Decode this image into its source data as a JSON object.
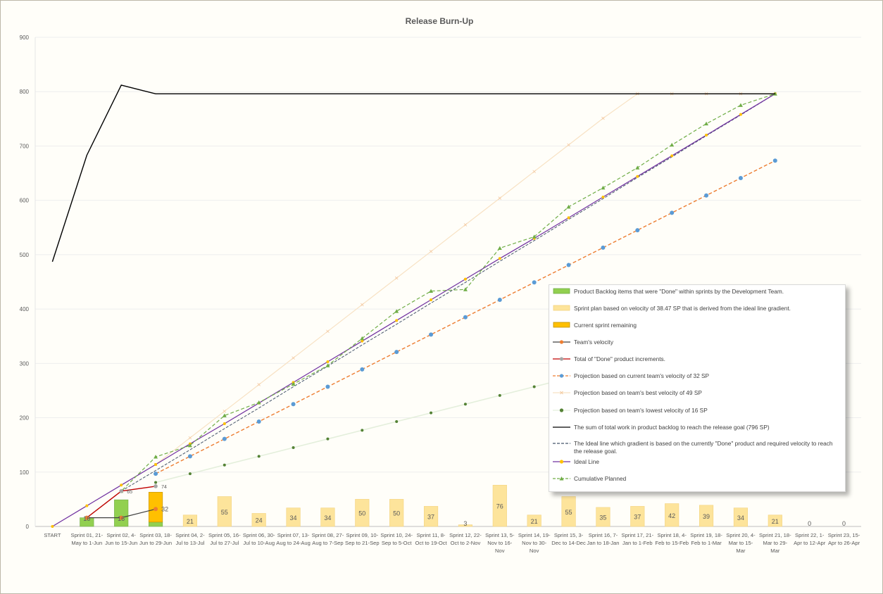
{
  "chart_data": {
    "type": "bar",
    "title": "Release Burn-Up",
    "ylim": [
      0,
      900
    ],
    "yticks": [
      0,
      100,
      200,
      300,
      400,
      500,
      600,
      700,
      800,
      900
    ],
    "categories": [
      "START",
      "Sprint 01, 21-May to 1-Jun",
      "Sprint 02, 4-Jun to 15-Jun",
      "Sprint 03, 18-Jun to 29-Jun",
      "Sprint 04, 2-Jul to 13-Jul",
      "Sprint 05, 16-Jul to 27-Jul",
      "Sprint 06, 30-Jul to 10-Aug",
      "Sprint 07, 13-Aug to 24-Aug",
      "Sprint 08, 27-Aug to 7-Sep",
      "Sprint 09, 10-Sep to 21-Sep",
      "Sprint 10, 24-Sep to 5-Oct",
      "Sprint 11, 8-Oct to 19-Oct",
      "Sprint 12, 22-Oct to 2-Nov",
      "Sprint 13, 5-Nov to 16-Nov",
      "Sprint 14, 19-Nov to 30-Nov",
      "Sprint 15, 3-Dec to 14-Dec",
      "Sprint 16, 7-Jan to 18-Jan",
      "Sprint 17, 21-Jan to 1-Feb",
      "Sprint 18, 4-Feb to 15-Feb",
      "Sprint 19, 18-Feb to 1-Mar",
      "Sprint 20, 4-Mar to 15-Mar",
      "Sprint 21, 18-Mar to 29-Mar",
      "Sprint 22, 1-Apr to 12-Apr",
      "Sprint 23, 15-Apr to 26-Apr"
    ],
    "tick_label_lines": [
      [
        "START"
      ],
      [
        "Sprint 01, 21-",
        "May to 1-Jun"
      ],
      [
        "Sprint 02, 4-",
        "Jun to 15-Jun"
      ],
      [
        "Sprint 03, 18-",
        "Jun to 29-Jun"
      ],
      [
        "Sprint 04, 2-",
        "Jul to 13-Jul"
      ],
      [
        "Sprint 05, 16-",
        "Jul to 27-Jul"
      ],
      [
        "Sprint 06, 30-",
        "Jul to 10-Aug"
      ],
      [
        "Sprint 07, 13-",
        "Aug to 24-Aug"
      ],
      [
        "Sprint 08, 27-",
        "Aug to 7-Sep"
      ],
      [
        "Sprint 09, 10-",
        "Sep to 21-Sep"
      ],
      [
        "Sprint 10, 24-",
        "Sep to 5-Oct"
      ],
      [
        "Sprint 11, 8-",
        "Oct to 19-Oct"
      ],
      [
        "Sprint 12, 22-",
        "Oct to 2-Nov"
      ],
      [
        "Sprint 13, 5-",
        "Nov to 16-",
        "Nov"
      ],
      [
        "Sprint 14, 19-",
        "Nov to 30-",
        "Nov"
      ],
      [
        "Sprint 15, 3-",
        "Dec to 14-Dec"
      ],
      [
        "Sprint 16, 7-",
        "Jan to 18-Jan"
      ],
      [
        "Sprint 17, 21-",
        "Jan to 1-Feb"
      ],
      [
        "Sprint 18, 4-",
        "Feb to 15-Feb"
      ],
      [
        "Sprint 19, 18-",
        "Feb to 1-Mar"
      ],
      [
        "Sprint 20, 4-",
        "Mar to 15-",
        "Mar"
      ],
      [
        "Sprint 21, 18-",
        "Mar to 29-",
        "Mar"
      ],
      [
        "Sprint 22, 1-",
        "Apr to 12-Apr"
      ],
      [
        "Sprint 23, 15-",
        "Apr to 26-Apr"
      ]
    ],
    "series": [
      {
        "name": "Product Backlog items that were \"Done\" within sprints by the Development Team.",
        "kind": "bar",
        "color": "#92d050",
        "values": [
          null,
          16,
          49,
          8,
          null,
          null,
          null,
          null,
          null,
          null,
          null,
          null,
          null,
          null,
          null,
          null,
          null,
          null,
          null,
          null,
          null,
          null,
          null,
          null
        ]
      },
      {
        "name": "Sprint plan based on velocity of 38.47 SP that is derived from the ideal line gradient.",
        "kind": "bar",
        "color": "#fde49b",
        "values": [
          null,
          null,
          null,
          null,
          21,
          55,
          24,
          34,
          34,
          50,
          50,
          37,
          3,
          76,
          21,
          55,
          35,
          37,
          42,
          39,
          34,
          21,
          0,
          0
        ],
        "labels": [
          null,
          "16",
          "16",
          null,
          "21",
          "55",
          "24",
          "34",
          "34",
          "50",
          "50",
          "37",
          "3",
          "76",
          "21",
          "55",
          "35",
          "37",
          "42",
          "39",
          "34",
          "21",
          "0",
          "0"
        ]
      },
      {
        "name": "Current sprint remaining",
        "kind": "bar",
        "color": "#ffc000",
        "values": [
          null,
          null,
          null,
          55,
          null,
          null,
          null,
          null,
          null,
          null,
          null,
          null,
          null,
          null,
          null,
          null,
          null,
          null,
          null,
          null,
          null,
          null,
          null,
          null
        ]
      },
      {
        "name": "Team's velocity",
        "kind": "line",
        "color": "#ed7d31",
        "values": [
          null,
          16,
          16,
          32,
          null,
          null,
          null,
          null,
          null,
          null,
          null,
          null,
          null,
          null,
          null,
          null,
          null,
          null,
          null,
          null,
          null,
          null,
          null,
          null
        ],
        "point_label": {
          "index": 3,
          "text": "32"
        }
      },
      {
        "name": "Total of \"Done\" product increments.",
        "kind": "line",
        "color": "#c00000",
        "values": [
          null,
          16,
          65,
          74,
          null,
          null,
          null,
          null,
          null,
          null,
          null,
          null,
          null,
          null,
          null,
          null,
          null,
          null,
          null,
          null,
          null,
          null,
          null,
          null
        ],
        "point_labels": [
          {
            "index": 2,
            "text": "65"
          },
          {
            "index": 3,
            "text": "74"
          }
        ]
      },
      {
        "name": "Projection based on current team's velocity of 32 SP",
        "kind": "line",
        "color": "#ed7d31",
        "marker_color": "#5b9bd5",
        "values": [
          null,
          null,
          null,
          97,
          129,
          161,
          193,
          225,
          257,
          289,
          321,
          353,
          385,
          417,
          449,
          481,
          513,
          545,
          577,
          609,
          641,
          673,
          null,
          null
        ]
      },
      {
        "name": "Projection based on team's best velocity of 49 SP",
        "kind": "line",
        "color": "#f7dcb4",
        "values": [
          null,
          null,
          null,
          114,
          163,
          212,
          261,
          310,
          359,
          408,
          457,
          506,
          555,
          604,
          653,
          702,
          751,
          796,
          796,
          796,
          796,
          796,
          null,
          null
        ]
      },
      {
        "name": "Projection based on team's lowest velocity of 16 SP",
        "kind": "line",
        "color": "#e2efda",
        "marker_color": "#548235",
        "values": [
          null,
          null,
          null,
          81,
          97,
          113,
          129,
          145,
          161,
          177,
          193,
          209,
          225,
          241,
          257,
          273,
          289,
          305,
          321,
          337,
          353,
          369,
          null,
          null
        ]
      },
      {
        "name": "The sum of total work in product backlog to reach the release goal (796 SP)",
        "kind": "line",
        "color": "#000000",
        "values": [
          487,
          683,
          812,
          796,
          796,
          796,
          796,
          796,
          796,
          796,
          796,
          796,
          796,
          796,
          796,
          796,
          796,
          796,
          796,
          796,
          796,
          796,
          null,
          null
        ]
      },
      {
        "name": "The Ideal line which gradient is based on the currently \"Done\" product and required velocity to reach the release goal.",
        "kind": "line",
        "color": "#44546a",
        "values": [
          null,
          null,
          65,
          103,
          141,
          180,
          218,
          257,
          295,
          334,
          372,
          411,
          449,
          488,
          526,
          565,
          603,
          642,
          680,
          719,
          757,
          796,
          null,
          null
        ]
      },
      {
        "name": "Ideal Line",
        "kind": "line",
        "color": "#7030a0",
        "marker_color": "#ffc000",
        "values": [
          0,
          38,
          76,
          114,
          152,
          189,
          227,
          265,
          303,
          341,
          379,
          417,
          455,
          493,
          530,
          568,
          606,
          644,
          682,
          720,
          758,
          796,
          null,
          null
        ]
      },
      {
        "name": "Cumulative Planned",
        "kind": "line",
        "color": "#70ad47",
        "values": [
          null,
          16,
          65,
          128,
          149,
          204,
          228,
          262,
          296,
          346,
          396,
          433,
          436,
          512,
          533,
          588,
          623,
          660,
          702,
          741,
          775,
          796,
          null,
          null
        ]
      }
    ],
    "legend_position": "right",
    "grid": true
  }
}
